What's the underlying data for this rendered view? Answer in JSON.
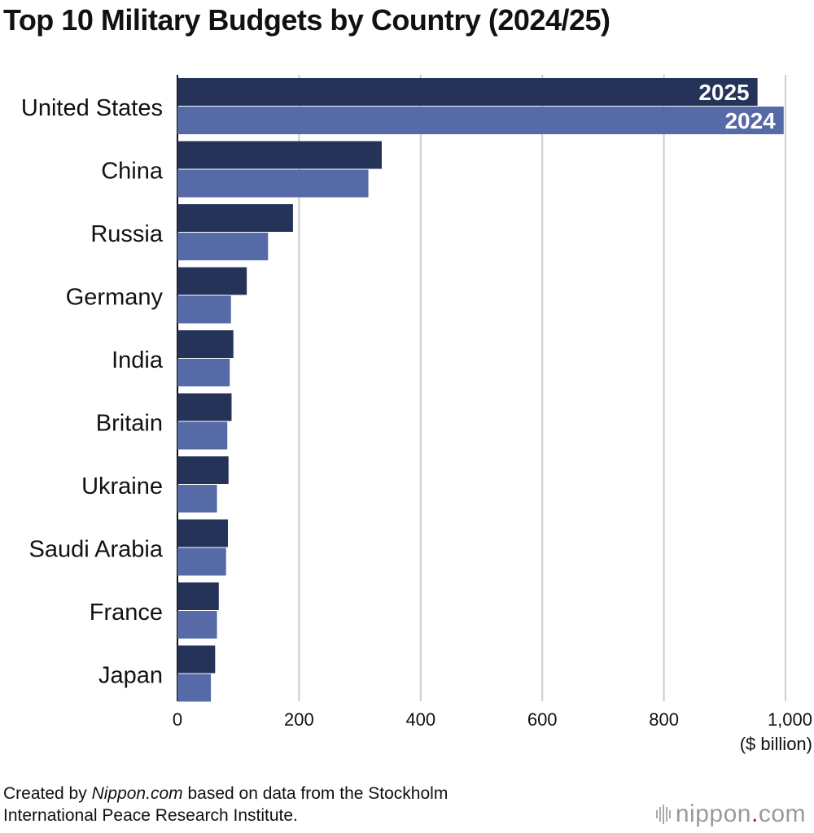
{
  "title": "Top 10 Military Budgets by Country (2024/25)",
  "chart_data": {
    "type": "bar",
    "orientation": "horizontal",
    "categories": [
      "United States",
      "China",
      "Russia",
      "Germany",
      "India",
      "Britain",
      "Ukraine",
      "Saudi Arabia",
      "France",
      "Japan"
    ],
    "series": [
      {
        "name": "2025",
        "color": "#253359",
        "values": [
          954,
          336,
          190,
          114,
          92,
          89,
          84,
          83,
          68,
          62
        ]
      },
      {
        "name": "2024",
        "color": "#566aa8",
        "values": [
          997,
          314,
          149,
          88,
          86,
          82,
          65,
          80,
          65,
          55
        ]
      }
    ],
    "xlim": [
      0,
      1000
    ],
    "xticks": [
      0,
      200,
      400,
      600,
      800,
      1000
    ],
    "xtick_labels": [
      "0",
      "200",
      "400",
      "600",
      "800",
      "1,000"
    ],
    "xlabel": "($ billion)",
    "grid": true
  },
  "footer": {
    "prefix": "Created by ",
    "source": "Nippon.com",
    "line1_rest": " based on data from the Stockholm",
    "line2": "International Peace Research Institute."
  },
  "logo": {
    "name": "nippon",
    "dot": ".",
    "tld": "com"
  }
}
